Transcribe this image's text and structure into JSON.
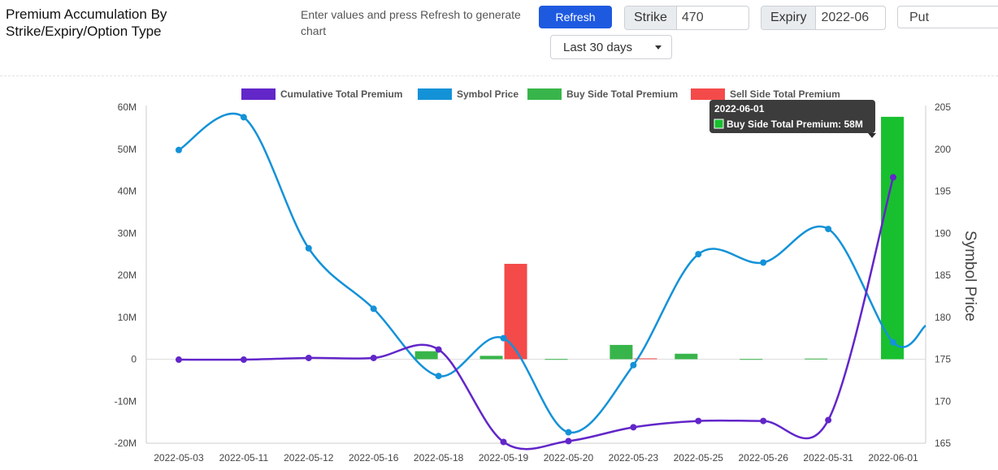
{
  "header": {
    "title": "Premium Accumulation By Strike/Expiry/Option Type",
    "hint": "Enter values and press Refresh to generate chart",
    "refresh_label": "Refresh",
    "strike_label": "Strike",
    "strike_value": "470",
    "expiry_label": "Expiry",
    "expiry_value": "2022-06",
    "option_type_value": "Put",
    "range_value": "Last 30 days"
  },
  "colors": {
    "cumulative": "#6226c9",
    "symbol_price": "#1492d8",
    "buy_side": "#38b54a",
    "sell_side": "#f44a4a",
    "highlight": "#18c02f"
  },
  "chart_data": {
    "type": "bar+line",
    "title": "",
    "categories": [
      "2022-05-03",
      "2022-05-11",
      "2022-05-12",
      "2022-05-16",
      "2022-05-18",
      "2022-05-19",
      "2022-05-20",
      "2022-05-23",
      "2022-05-25",
      "2022-05-26",
      "2022-05-31",
      "2022-06-01"
    ],
    "series": [
      {
        "name": "Cumulative Total Premium",
        "type": "line",
        "axis": "left",
        "values": [
          -0.1,
          -0.1,
          0.3,
          0.3,
          2.3,
          -19.7,
          -19.5,
          -16.2,
          -14.7,
          -14.7,
          -14.5,
          43.3
        ]
      },
      {
        "name": "Symbol Price",
        "type": "line",
        "axis": "right",
        "values": [
          199.9,
          203.8,
          188.2,
          181.0,
          173.0,
          177.5,
          166.3,
          174.3,
          187.5,
          186.5,
          190.5,
          177.0
        ]
      },
      {
        "name": "Buy Side Total Premium",
        "type": "bar",
        "axis": "left",
        "values": [
          0,
          0,
          0,
          0,
          1.9,
          0.8,
          0.05,
          3.4,
          1.3,
          0.05,
          0.15,
          57.7
        ]
      },
      {
        "name": "Sell Side Total Premium",
        "type": "bar",
        "axis": "left",
        "values": [
          0,
          0,
          0,
          0,
          0,
          22.7,
          0,
          0.2,
          0,
          0,
          0,
          0
        ]
      }
    ],
    "y_left": {
      "ticks": [
        "60M",
        "50M",
        "40M",
        "30M",
        "20M",
        "10M",
        "0",
        "-10M",
        "-20M"
      ],
      "ylim": [
        -20,
        60
      ],
      "unit": "M"
    },
    "y_right": {
      "label": "Symbol Price",
      "ticks": [
        "205",
        "200",
        "195",
        "190",
        "185",
        "180",
        "175",
        "170",
        "165"
      ],
      "ylim": [
        165,
        205
      ]
    },
    "legend_position": "top",
    "grid": false,
    "tooltip": {
      "title": "2022-06-01",
      "text": "Buy Side Total Premium: 58M",
      "category": "2022-06-01"
    }
  }
}
